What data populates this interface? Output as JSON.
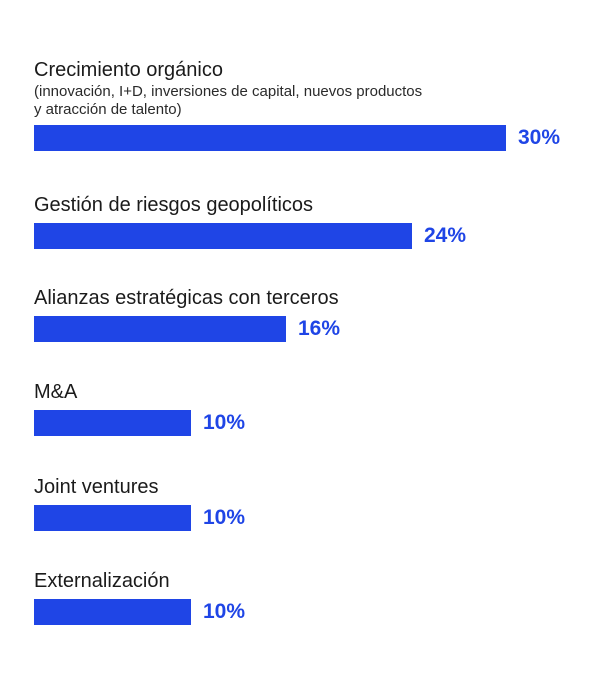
{
  "chart_data": {
    "type": "bar",
    "orientation": "horizontal",
    "title": "",
    "xlabel": "",
    "ylabel": "",
    "unit": "%",
    "xlim": [
      0,
      30
    ],
    "grid": false,
    "bar_color": "#1f45e6",
    "categories": [
      "Crecimiento orgánico",
      "Gestión de riesgos geopolíticos",
      "Alianzas estratégicas con terceros",
      "M&A",
      "Joint ventures",
      "Externalización"
    ],
    "sublabels": [
      "(innovación, I+D, inversiones de capital, nuevos productos y atracción de talento)",
      "",
      "",
      "",
      "",
      ""
    ],
    "values": [
      30,
      24,
      16,
      10,
      10,
      10
    ],
    "value_labels": [
      "30%",
      "24%",
      "16%",
      "10%",
      "10%",
      "10%"
    ]
  }
}
